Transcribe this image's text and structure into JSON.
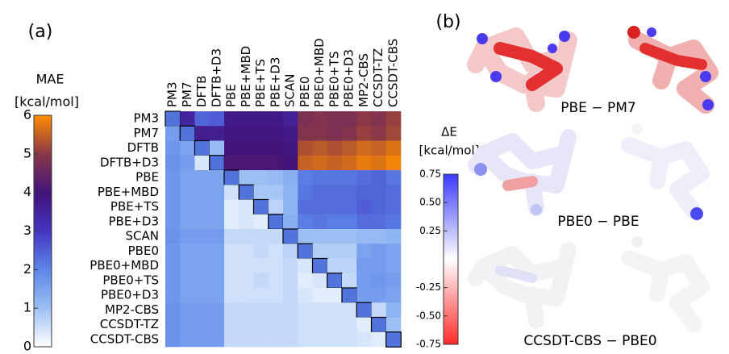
{
  "chart_data": [
    {
      "type": "heatmap",
      "panel_label": "(a)",
      "colorbar_title": [
        "MAE",
        "[kcal/mol]"
      ],
      "categories": [
        "PM3",
        "PM7",
        "DFTB",
        "DFTB+D3",
        "PBE",
        "PBE+MBD",
        "PBE+TS",
        "PBE+D3",
        "SCAN",
        "PBE0",
        "PBE0+MBD",
        "PBE0+TS",
        "PBE0+D3",
        "MP2-CBS",
        "CCSDT-TZ",
        "CCSDT-CBS"
      ],
      "values": [
        [
          null,
          3.5,
          2.4,
          2.5,
          3.8,
          3.8,
          3.8,
          3.8,
          3.6,
          4.8,
          4.9,
          4.8,
          4.8,
          5.0,
          4.9,
          5.1
        ],
        [
          1.6,
          null,
          3.7,
          3.7,
          3.9,
          3.9,
          3.9,
          3.9,
          3.8,
          4.9,
          4.9,
          4.8,
          4.9,
          5.1,
          5.0,
          5.2
        ],
        [
          1.7,
          1.5,
          null,
          1.1,
          4.0,
          4.0,
          4.0,
          4.0,
          3.9,
          5.3,
          5.4,
          5.3,
          5.4,
          5.6,
          5.5,
          5.7
        ],
        [
          1.8,
          1.6,
          0.4,
          null,
          4.1,
          4.1,
          4.1,
          4.1,
          4.0,
          5.5,
          5.6,
          5.5,
          5.6,
          5.8,
          5.7,
          5.9
        ],
        [
          1.7,
          1.5,
          1.5,
          1.5,
          null,
          1.0,
          1.0,
          1.1,
          1.3,
          2.1,
          2.2,
          2.2,
          2.2,
          2.3,
          2.4,
          2.2
        ],
        [
          1.7,
          1.5,
          1.5,
          1.5,
          0.5,
          null,
          0.9,
          0.9,
          1.2,
          2.2,
          2.3,
          2.3,
          2.3,
          2.4,
          2.4,
          2.3
        ],
        [
          1.7,
          1.5,
          1.5,
          1.5,
          0.3,
          0.4,
          null,
          0.7,
          1.2,
          2.3,
          2.3,
          2.3,
          2.3,
          2.5,
          2.4,
          2.3
        ],
        [
          1.7,
          1.5,
          1.5,
          1.5,
          0.3,
          0.4,
          0.3,
          null,
          1.3,
          2.1,
          2.2,
          2.1,
          2.1,
          2.3,
          2.3,
          2.2
        ],
        [
          1.8,
          1.6,
          1.6,
          1.6,
          0.6,
          0.6,
          0.6,
          0.6,
          null,
          1.0,
          1.0,
          1.0,
          1.0,
          1.1,
          1.1,
          1.2
        ],
        [
          1.7,
          1.5,
          1.5,
          1.5,
          0.5,
          0.5,
          0.6,
          0.5,
          0.7,
          null,
          0.8,
          0.8,
          0.8,
          1.5,
          1.6,
          1.5
        ],
        [
          1.7,
          1.5,
          1.5,
          1.5,
          0.5,
          0.5,
          0.5,
          0.5,
          0.6,
          0.4,
          null,
          0.7,
          0.7,
          1.6,
          1.6,
          1.5
        ],
        [
          1.7,
          1.5,
          1.5,
          1.5,
          0.5,
          0.5,
          0.6,
          0.5,
          0.6,
          0.3,
          0.4,
          null,
          0.6,
          1.6,
          1.7,
          1.6
        ],
        [
          1.7,
          1.5,
          1.5,
          1.5,
          0.5,
          0.5,
          0.5,
          0.5,
          0.6,
          0.4,
          0.3,
          0.3,
          null,
          1.6,
          1.6,
          1.5
        ],
        [
          1.8,
          1.6,
          1.6,
          1.6,
          0.6,
          0.6,
          0.6,
          0.6,
          0.6,
          0.5,
          0.5,
          0.5,
          0.5,
          null,
          0.6,
          1.2
        ],
        [
          1.8,
          1.6,
          1.6,
          1.6,
          0.6,
          0.6,
          0.6,
          0.6,
          0.6,
          0.5,
          0.5,
          0.5,
          0.5,
          0.3,
          null,
          1.0
        ],
        [
          1.8,
          1.6,
          1.6,
          1.6,
          0.6,
          0.6,
          0.6,
          0.6,
          0.6,
          0.5,
          0.5,
          0.5,
          0.5,
          0.4,
          0.3,
          null
        ]
      ],
      "zlim": [
        0,
        6
      ],
      "zticks": [
        0,
        1,
        2,
        3,
        4,
        5,
        6
      ],
      "colors": [
        "#ffffff",
        "#9cc0f4",
        "#5c86e8",
        "#4434c0",
        "#42147a",
        "#8a3848",
        "#ff8c00"
      ],
      "diagonal_color": "#5273dc"
    },
    {
      "type": "surface-map",
      "panel_label": "(b)",
      "colorbar_title": [
        "ΔE",
        "[kcal/mol]"
      ],
      "zlim": [
        -0.75,
        0.75
      ],
      "zticks": [
        {
          "value": 0.75,
          "label": "0.75"
        },
        {
          "value": 0.5,
          "label": "0.50"
        },
        {
          "value": 0.25,
          "label": "0.25"
        },
        {
          "value": -0.25,
          "label": "-0.25"
        },
        {
          "value": -0.5,
          "label": "-0.50"
        },
        {
          "value": -0.75,
          "label": "-0.75"
        }
      ],
      "colors": [
        "#ff2a2a",
        "#ffffff",
        "#3a3aff"
      ],
      "labels": [
        "PBE − PM7",
        "PBE0 − PBE",
        "CCSDT-CBS − PBE0"
      ]
    }
  ]
}
